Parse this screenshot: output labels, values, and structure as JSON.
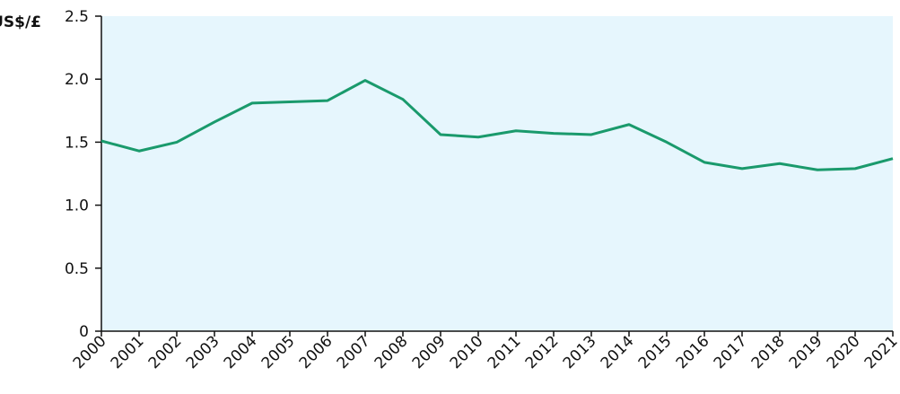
{
  "chart_data": {
    "type": "line",
    "y_label": "US$/£",
    "x": [
      2000,
      2001,
      2002,
      2003,
      2004,
      2005,
      2006,
      2007,
      2008,
      2009,
      2010,
      2011,
      2012,
      2013,
      2014,
      2015,
      2016,
      2017,
      2018,
      2019,
      2020,
      2021
    ],
    "series": [
      {
        "color": "#1a9a6c",
        "values": [
          1.51,
          1.43,
          1.5,
          1.66,
          1.81,
          1.82,
          1.83,
          1.99,
          1.84,
          1.56,
          1.54,
          1.59,
          1.57,
          1.56,
          1.64,
          1.5,
          1.34,
          1.29,
          1.33,
          1.28,
          1.29,
          1.37
        ]
      }
    ],
    "xlim": [
      2000,
      2021
    ],
    "xticks": [
      2000,
      2001,
      2002,
      2003,
      2004,
      2005,
      2006,
      2007,
      2008,
      2009,
      2010,
      2011,
      2012,
      2013,
      2014,
      2015,
      2016,
      2017,
      2018,
      2019,
      2020,
      2021
    ],
    "ylim": [
      0,
      2.5
    ],
    "yticks": [
      0,
      {
        "value": 0.5,
        "label": "0.5"
      },
      {
        "value": 1,
        "label": "1.0"
      },
      {
        "value": 1.5,
        "label": "1.5"
      },
      {
        "value": 2,
        "label": "2.0"
      },
      {
        "value": 2.5,
        "label": "2.5"
      }
    ],
    "background": "#e6f6fd"
  }
}
